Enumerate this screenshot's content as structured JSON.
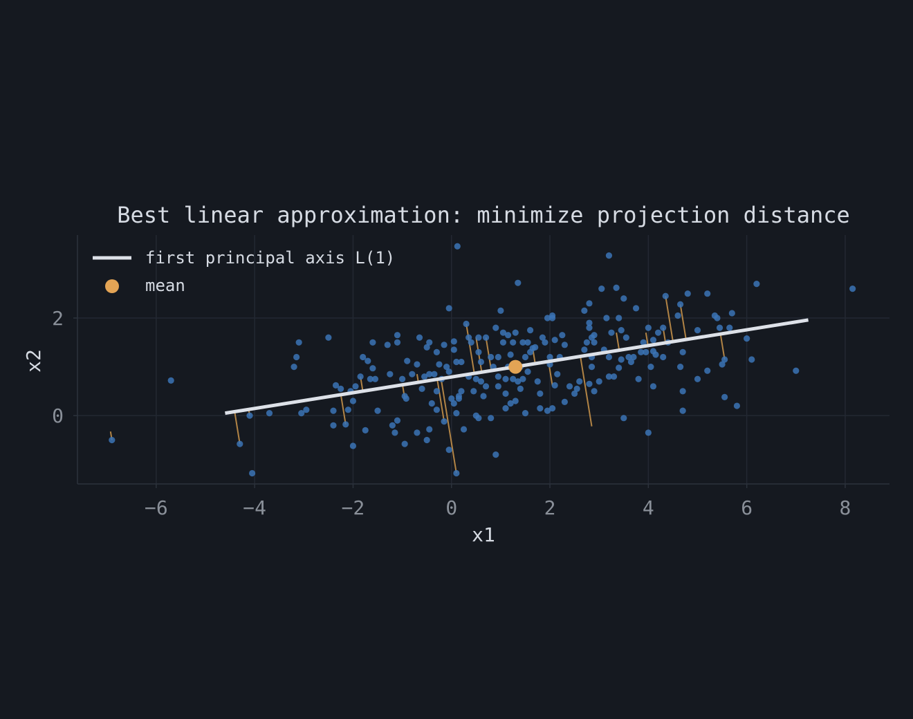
{
  "chart_data": {
    "type": "scatter",
    "title": "Best linear approximation: minimize projection distance",
    "xlabel": "x1",
    "ylabel": "x2",
    "xlim": [
      -7.6,
      8.9
    ],
    "ylim": [
      -1.4,
      3.7
    ],
    "xticks": [
      "−6",
      "−4",
      "−2",
      "0",
      "2",
      "4",
      "6",
      "8"
    ],
    "xtick_values": [
      -6,
      -4,
      -2,
      0,
      2,
      4,
      6,
      8
    ],
    "yticks": [
      "0",
      "2"
    ],
    "ytick_values": [
      0,
      2
    ],
    "grid": true,
    "legend_position": "top-left",
    "colors": {
      "background": "#151920",
      "points": "#3b74b6",
      "axis_line": "#dde1e8",
      "mean": "#e3a455",
      "projections": "#c4904a",
      "grid": "#232832"
    },
    "mean": [
      1.3,
      1.0
    ],
    "principal_axis": {
      "name": "first principal axis  L(1)",
      "x": [
        -4.6,
        7.25
      ],
      "y": [
        0.05,
        1.96
      ]
    },
    "legend": {
      "axis_label": "first principal axis  L(1)",
      "mean_label": "mean"
    },
    "points": [
      [
        -6.9,
        -0.5
      ],
      [
        -5.7,
        0.72
      ],
      [
        -4.3,
        -0.58
      ],
      [
        -4.1,
        0.0
      ],
      [
        -4.05,
        -1.18
      ],
      [
        -3.7,
        0.05
      ],
      [
        -3.2,
        1.0
      ],
      [
        -3.15,
        1.2
      ],
      [
        -3.1,
        1.5
      ],
      [
        -3.05,
        0.05
      ],
      [
        -2.95,
        0.12
      ],
      [
        -2.5,
        1.6
      ],
      [
        -2.4,
        -0.2
      ],
      [
        -2.4,
        0.1
      ],
      [
        -2.35,
        0.62
      ],
      [
        -2.25,
        0.55
      ],
      [
        -2.15,
        -0.18
      ],
      [
        -2.1,
        0.12
      ],
      [
        -2.05,
        0.5
      ],
      [
        -2.0,
        -0.62
      ],
      [
        -2.0,
        0.3
      ],
      [
        -1.95,
        0.6
      ],
      [
        -1.85,
        0.8
      ],
      [
        -1.8,
        1.2
      ],
      [
        -1.75,
        -0.3
      ],
      [
        -1.7,
        1.12
      ],
      [
        -1.65,
        0.75
      ],
      [
        -1.6,
        0.97
      ],
      [
        -1.55,
        0.75
      ],
      [
        -1.6,
        1.5
      ],
      [
        -1.5,
        0.1
      ],
      [
        -1.3,
        1.45
      ],
      [
        -1.25,
        0.85
      ],
      [
        -1.2,
        -0.2
      ],
      [
        -1.15,
        -0.35
      ],
      [
        -1.1,
        -0.1
      ],
      [
        -1.1,
        1.5
      ],
      [
        -1.1,
        1.65
      ],
      [
        -1.0,
        0.75
      ],
      [
        -0.95,
        0.4
      ],
      [
        -0.95,
        -0.58
      ],
      [
        -0.92,
        0.35
      ],
      [
        -0.9,
        1.12
      ],
      [
        -0.8,
        0.85
      ],
      [
        -0.7,
        1.05
      ],
      [
        -0.7,
        -0.35
      ],
      [
        -0.65,
        1.6
      ],
      [
        -0.6,
        0.55
      ],
      [
        -0.55,
        0.8
      ],
      [
        -0.5,
        -0.5
      ],
      [
        -0.5,
        1.4
      ],
      [
        -0.45,
        0.85
      ],
      [
        -0.45,
        1.5
      ],
      [
        -0.45,
        -0.28
      ],
      [
        -0.4,
        0.25
      ],
      [
        -0.35,
        0.85
      ],
      [
        -0.3,
        1.3
      ],
      [
        -0.3,
        0.5
      ],
      [
        -0.3,
        0.12
      ],
      [
        -0.25,
        1.05
      ],
      [
        -0.2,
        0.75
      ],
      [
        -0.15,
        -0.12
      ],
      [
        -0.15,
        1.45
      ],
      [
        -0.1,
        1.0
      ],
      [
        -0.05,
        -0.7
      ],
      [
        -0.05,
        0.9
      ],
      [
        -0.05,
        2.2
      ],
      [
        0.0,
        0.35
      ],
      [
        0.05,
        1.52
      ],
      [
        0.05,
        0.25
      ],
      [
        0.05,
        1.35
      ],
      [
        0.1,
        1.1
      ],
      [
        0.1,
        0.05
      ],
      [
        0.1,
        -1.18
      ],
      [
        0.12,
        3.47
      ],
      [
        0.15,
        0.4
      ],
      [
        0.15,
        0.35
      ],
      [
        0.2,
        0.5
      ],
      [
        0.2,
        1.1
      ],
      [
        0.25,
        -0.28
      ],
      [
        0.3,
        1.88
      ],
      [
        0.35,
        0.8
      ],
      [
        0.35,
        1.6
      ],
      [
        0.4,
        1.5
      ],
      [
        0.45,
        0.5
      ],
      [
        0.5,
        0.75
      ],
      [
        0.5,
        0.0
      ],
      [
        0.55,
        1.3
      ],
      [
        0.55,
        -0.05
      ],
      [
        0.55,
        1.6
      ],
      [
        0.6,
        0.7
      ],
      [
        0.6,
        1.1
      ],
      [
        0.65,
        0.4
      ],
      [
        0.7,
        0.6
      ],
      [
        0.7,
        1.6
      ],
      [
        0.8,
        1.2
      ],
      [
        0.8,
        -0.05
      ],
      [
        0.85,
        1.0
      ],
      [
        0.9,
        1.8
      ],
      [
        0.9,
        -0.8
      ],
      [
        0.95,
        0.6
      ],
      [
        0.95,
        0.8
      ],
      [
        0.95,
        1.2
      ],
      [
        1.0,
        2.15
      ],
      [
        1.05,
        1.5
      ],
      [
        1.05,
        1.7
      ],
      [
        1.1,
        0.45
      ],
      [
        1.1,
        0.75
      ],
      [
        1.1,
        0.15
      ],
      [
        1.15,
        1.0
      ],
      [
        1.15,
        1.65
      ],
      [
        1.2,
        1.25
      ],
      [
        1.2,
        0.25
      ],
      [
        1.25,
        0.75
      ],
      [
        1.25,
        1.5
      ],
      [
        1.3,
        1.7
      ],
      [
        1.3,
        0.3
      ],
      [
        1.35,
        0.7
      ],
      [
        1.35,
        2.72
      ],
      [
        1.4,
        1.0
      ],
      [
        1.4,
        0.55
      ],
      [
        1.45,
        0.75
      ],
      [
        1.45,
        1.5
      ],
      [
        1.5,
        1.2
      ],
      [
        1.5,
        0.05
      ],
      [
        1.55,
        0.9
      ],
      [
        1.55,
        1.5
      ],
      [
        1.6,
        1.75
      ],
      [
        1.6,
        1.3
      ],
      [
        1.65,
        1.38
      ],
      [
        1.7,
        1.4
      ],
      [
        1.75,
        0.7
      ],
      [
        1.8,
        0.15
      ],
      [
        1.8,
        0.45
      ],
      [
        1.85,
        1.6
      ],
      [
        1.9,
        1.5
      ],
      [
        1.95,
        2.0
      ],
      [
        1.95,
        0.1
      ],
      [
        2.0,
        1.2
      ],
      [
        2.0,
        1.05
      ],
      [
        2.05,
        2.0
      ],
      [
        2.05,
        0.15
      ],
      [
        2.05,
        2.05
      ],
      [
        2.1,
        1.55
      ],
      [
        2.1,
        0.62
      ],
      [
        2.15,
        0.85
      ],
      [
        2.2,
        1.2
      ],
      [
        2.25,
        1.65
      ],
      [
        2.3,
        1.45
      ],
      [
        2.3,
        0.28
      ],
      [
        2.4,
        0.6
      ],
      [
        2.5,
        0.45
      ],
      [
        2.55,
        0.55
      ],
      [
        2.6,
        0.7
      ],
      [
        2.7,
        1.35
      ],
      [
        2.7,
        2.15
      ],
      [
        2.75,
        1.5
      ],
      [
        2.8,
        1.9
      ],
      [
        2.8,
        1.8
      ],
      [
        2.8,
        2.3
      ],
      [
        2.8,
        0.65
      ],
      [
        2.85,
        1.6
      ],
      [
        2.85,
        1.2
      ],
      [
        2.85,
        1.0
      ],
      [
        2.9,
        1.5
      ],
      [
        2.9,
        1.65
      ],
      [
        2.9,
        0.5
      ],
      [
        3.0,
        0.7
      ],
      [
        3.05,
        2.6
      ],
      [
        3.1,
        1.35
      ],
      [
        3.15,
        2.0
      ],
      [
        3.2,
        1.2
      ],
      [
        3.2,
        0.8
      ],
      [
        3.2,
        3.28
      ],
      [
        3.25,
        1.7
      ],
      [
        3.3,
        0.8
      ],
      [
        3.35,
        2.62
      ],
      [
        3.4,
        0.98
      ],
      [
        3.4,
        2.0
      ],
      [
        3.45,
        1.75
      ],
      [
        3.45,
        1.15
      ],
      [
        3.5,
        2.4
      ],
      [
        3.5,
        -0.05
      ],
      [
        3.55,
        1.6
      ],
      [
        3.6,
        1.2
      ],
      [
        3.65,
        1.1
      ],
      [
        3.7,
        1.2
      ],
      [
        3.75,
        2.2
      ],
      [
        3.8,
        0.75
      ],
      [
        3.85,
        1.3
      ],
      [
        3.9,
        1.5
      ],
      [
        3.95,
        1.3
      ],
      [
        4.0,
        1.8
      ],
      [
        4.0,
        -0.35
      ],
      [
        4.05,
        1.0
      ],
      [
        4.1,
        0.6
      ],
      [
        4.1,
        1.55
      ],
      [
        4.1,
        1.32
      ],
      [
        4.15,
        1.25
      ],
      [
        4.2,
        1.7
      ],
      [
        4.3,
        1.8
      ],
      [
        4.3,
        1.2
      ],
      [
        4.35,
        2.45
      ],
      [
        4.4,
        1.5
      ],
      [
        4.6,
        2.05
      ],
      [
        4.65,
        1.0
      ],
      [
        4.65,
        2.28
      ],
      [
        4.7,
        1.3
      ],
      [
        4.7,
        0.1
      ],
      [
        4.7,
        0.5
      ],
      [
        4.8,
        2.5
      ],
      [
        5.0,
        0.75
      ],
      [
        5.0,
        1.75
      ],
      [
        5.2,
        0.92
      ],
      [
        5.2,
        2.5
      ],
      [
        5.35,
        2.05
      ],
      [
        5.4,
        2.0
      ],
      [
        5.45,
        1.8
      ],
      [
        5.5,
        1.05
      ],
      [
        5.55,
        1.15
      ],
      [
        5.55,
        0.38
      ],
      [
        5.65,
        1.8
      ],
      [
        5.7,
        2.1
      ],
      [
        5.8,
        0.2
      ],
      [
        6.0,
        1.58
      ],
      [
        6.1,
        1.15
      ],
      [
        6.2,
        2.7
      ],
      [
        7.0,
        0.92
      ],
      [
        8.15,
        2.6
      ]
    ],
    "projection_points": [
      [
        -6.9,
        -0.5
      ],
      [
        -4.3,
        -0.58
      ],
      [
        -4.1,
        0.0
      ],
      [
        -2.15,
        -0.18
      ],
      [
        -1.85,
        0.8
      ],
      [
        -0.95,
        0.35
      ],
      [
        -0.7,
        0.85
      ],
      [
        -0.3,
        0.75
      ],
      [
        0.1,
        -1.18
      ],
      [
        -0.15,
        -0.12
      ],
      [
        0.3,
        1.88
      ],
      [
        0.5,
        1.6
      ],
      [
        0.7,
        1.6
      ],
      [
        1.65,
        1.38
      ],
      [
        2.05,
        0.62
      ],
      [
        2.85,
        -0.22
      ],
      [
        2.65,
        1.25
      ],
      [
        3.35,
        1.7
      ],
      [
        3.95,
        1.7
      ],
      [
        4.3,
        1.8
      ],
      [
        4.35,
        2.45
      ],
      [
        4.65,
        2.28
      ],
      [
        5.5,
        1.68
      ],
      [
        5.55,
        1.15
      ]
    ]
  }
}
